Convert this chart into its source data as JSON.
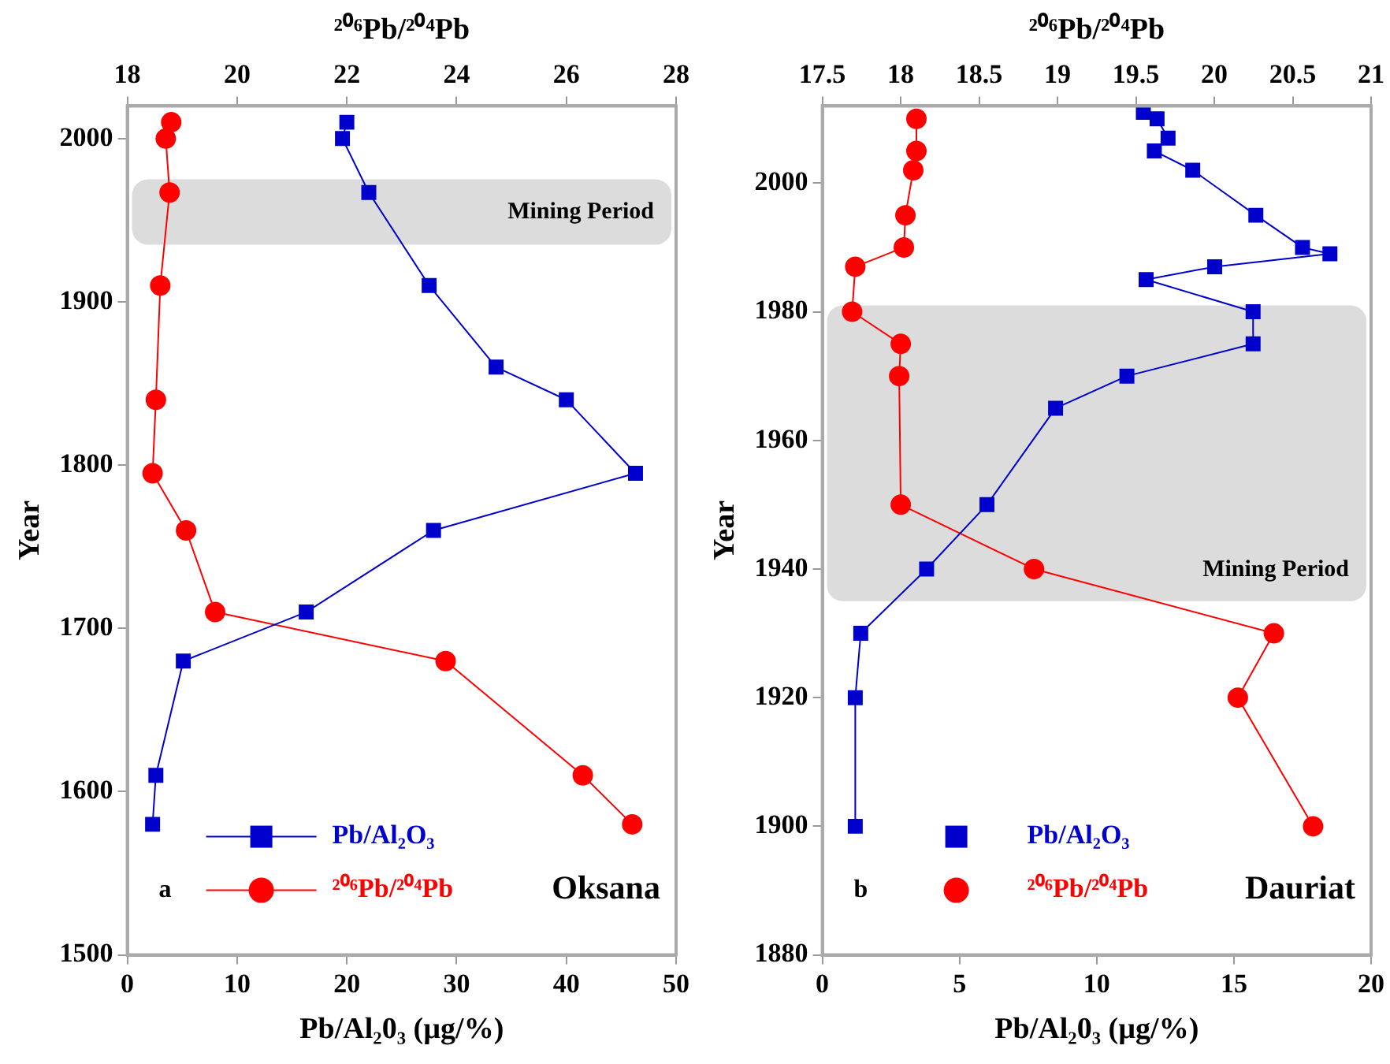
{
  "chart_data": [
    {
      "type": "line",
      "xlabel": "Pb/Al₂0₃ (µg/%)",
      "x2label": "²⁰⁶Pb/²⁰⁴Pb",
      "ylabel": "Year",
      "xlim": [
        0,
        50
      ],
      "xticks": [
        0,
        10,
        20,
        30,
        40,
        50
      ],
      "x2lim": [
        18,
        28
      ],
      "x2ticks": [
        18,
        20,
        22,
        24,
        26,
        28
      ],
      "ylim": [
        1500,
        2020
      ],
      "yticks": [
        1500,
        1600,
        1700,
        1800,
        1900,
        2000
      ],
      "grid": false,
      "legend": "bottom left",
      "bands": [
        {
          "axis": "y",
          "from": 1935,
          "to": 1975,
          "label": "Mining Period",
          "color": "#dcdcdc"
        }
      ],
      "annotations": [
        "a",
        "Oksana"
      ],
      "series": [
        {
          "name": "Pb/Al₂O₃",
          "color": "#0000cc",
          "marker": "square",
          "x": [
            20,
            19.6,
            22,
            27.5,
            33.6,
            40,
            46.3,
            27.9,
            16.3,
            5.1,
            2.6,
            2.3
          ],
          "values": [
            2010,
            2000,
            1967,
            1910,
            1860,
            1840,
            1795,
            1760,
            1710,
            1680,
            1610,
            1580
          ]
        },
        {
          "name": "²⁰⁶Pb/²⁰⁴Pb",
          "color": "#ff0000",
          "marker": "circle",
          "axis": "x2",
          "x": [
            18.8,
            18.7,
            18.77,
            18.6,
            18.52,
            18.46,
            19.07,
            19.6,
            23.8,
            26.3,
            27.2
          ],
          "values": [
            2010,
            2000,
            1967,
            1910,
            1840,
            1795,
            1760,
            1710,
            1680,
            1610,
            1580
          ]
        }
      ]
    },
    {
      "type": "line",
      "xlabel": "Pb/Al₂0₃ (µg/%)",
      "x2label": "²⁰⁶Pb/²⁰⁴Pb",
      "ylabel": "Year",
      "xlim": [
        0,
        20
      ],
      "xticks": [
        0,
        5,
        10,
        15,
        20
      ],
      "x2lim": [
        17.5,
        21
      ],
      "x2ticks": [
        17.5,
        18,
        18.5,
        19,
        19.5,
        20,
        20.5,
        21
      ],
      "ylim": [
        1880,
        2012
      ],
      "yticks": [
        1880,
        1900,
        1920,
        1940,
        1960,
        1980,
        2000
      ],
      "grid": false,
      "legend": "bottom left",
      "bands": [
        {
          "axis": "y",
          "from": 1935,
          "to": 1981,
          "label": "Mining Period",
          "color": "#dcdcdc"
        }
      ],
      "annotations": [
        "b",
        "Dauriat"
      ],
      "series": [
        {
          "name": "Pb/Al₂O₃",
          "color": "#0000cc",
          "marker": "square",
          "x": [
            11.7,
            12.2,
            12.6,
            12.1,
            13.5,
            15.8,
            17.5,
            18.5,
            14.3,
            11.8,
            15.7,
            15.7,
            11.1,
            8.5,
            6.0,
            3.8,
            1.4,
            1.2,
            1.2
          ],
          "values": [
            2011,
            2010,
            2007,
            2005,
            2002,
            1995,
            1990,
            1989,
            1987,
            1985,
            1980,
            1975,
            1970,
            1965,
            1950,
            1940,
            1930,
            1920,
            1900
          ]
        },
        {
          "name": "²⁰⁶Pb/²⁰⁴Pb",
          "color": "#ff0000",
          "marker": "circle",
          "axis": "x2",
          "x": [
            18.1,
            18.1,
            18.08,
            18.03,
            18.02,
            17.71,
            17.69,
            18.0,
            17.99,
            18.0,
            18.85,
            20.38,
            20.15,
            20.63
          ],
          "values": [
            2010,
            2005,
            2002,
            1995,
            1990,
            1987,
            1980,
            1975,
            1970,
            1950,
            1940,
            1930,
            1920,
            1900
          ]
        }
      ]
    }
  ]
}
